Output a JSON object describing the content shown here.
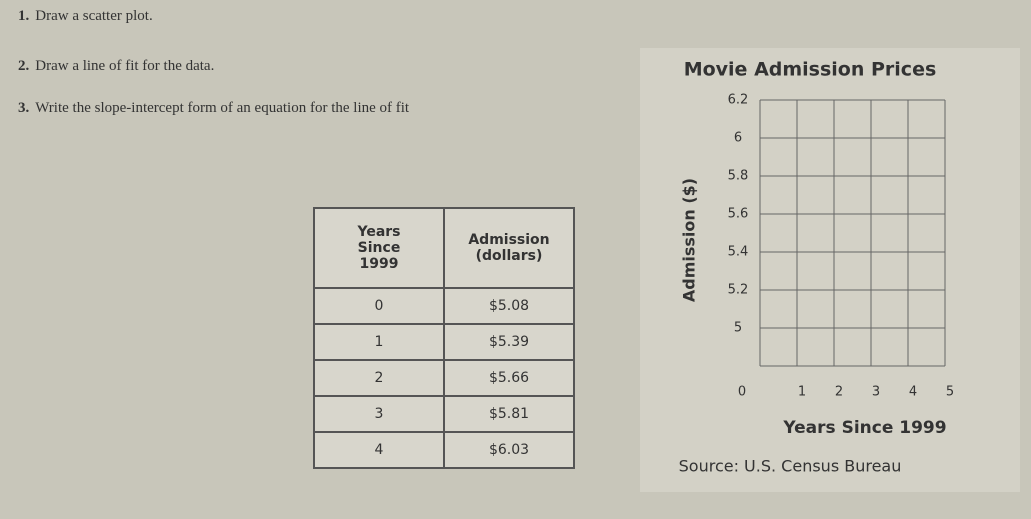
{
  "instructions": [
    {
      "number": "1.",
      "text": "Draw a scatter plot."
    },
    {
      "number": "2.",
      "text": "Draw a line of fit for the data."
    },
    {
      "number": "3.",
      "text": "Write the slope-intercept form of an equation for the line of fit"
    }
  ],
  "table": {
    "headers": [
      "Years Since 1999",
      "Admission (dollars)"
    ],
    "rows": [
      [
        "0",
        "$5.08"
      ],
      [
        "1",
        "$5.39"
      ],
      [
        "2",
        "$5.66"
      ],
      [
        "3",
        "$5.81"
      ],
      [
        "4",
        "$6.03"
      ]
    ]
  },
  "graph": {
    "title": "Movie Admission Prices",
    "y_label": "Admission ($)",
    "x_label": "Years Since 1999",
    "y_ticks": [
      "6.2",
      "6",
      "5.8",
      "5.6",
      "5.4",
      "5.2",
      "5"
    ],
    "origin": "0",
    "x_ticks": [
      "1",
      "2",
      "3",
      "4",
      "5"
    ],
    "source": "Source: U.S. Census Bureau"
  }
}
